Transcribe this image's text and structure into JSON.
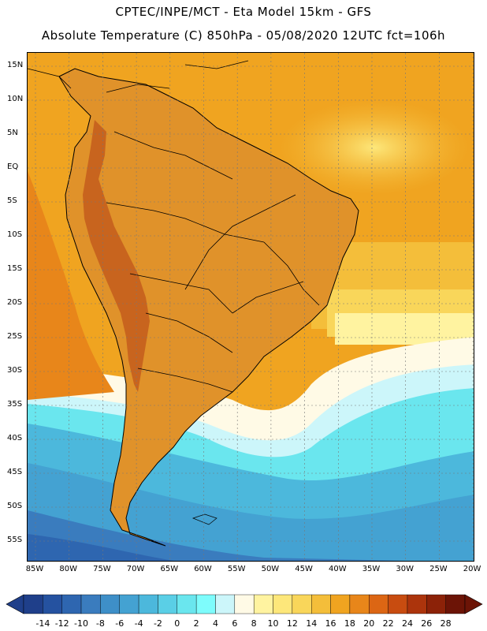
{
  "header": {
    "line1": "CPTEC/INPE/MCT -  Eta Model 15km - GFS",
    "line2": "Absolute Temperature (C) 850hPa - 05/08/2020 12UTC fct=106h"
  },
  "map": {
    "lat_labels": [
      "15N",
      "10N",
      "5N",
      "EQ",
      "5S",
      "10S",
      "15S",
      "20S",
      "25S",
      "30S",
      "35S",
      "40S",
      "45S",
      "50S",
      "55S"
    ],
    "lon_labels": [
      "85W",
      "80W",
      "75W",
      "70W",
      "65W",
      "60W",
      "55W",
      "50W",
      "45W",
      "40W",
      "35W",
      "30W",
      "25W",
      "20W"
    ],
    "ocean_color": "#f0a420",
    "land_color": "#e0922a",
    "andes_color": "#c8641e"
  },
  "colorbar": {
    "labels": [
      "-14",
      "-12",
      "-10",
      "-8",
      "-6",
      "-4",
      "-2",
      "0",
      "2",
      "4",
      "6",
      "8",
      "10",
      "12",
      "14",
      "16",
      "18",
      "20",
      "22",
      "24",
      "26",
      "28"
    ],
    "colors": [
      "#1f3f8a",
      "#2552a0",
      "#2e66b0",
      "#3a7cbe",
      "#3e8fc8",
      "#44a2d2",
      "#4cb8dc",
      "#5acfe6",
      "#6ae6ee",
      "#7efcfc",
      "#ccf6fa",
      "#fffae6",
      "#fff3a0",
      "#fde77a",
      "#f9d65a",
      "#f4be3a",
      "#f0a420",
      "#e8861a",
      "#dc6614",
      "#c84c10",
      "#ac340c",
      "#8c2208",
      "#6c1406"
    ]
  }
}
